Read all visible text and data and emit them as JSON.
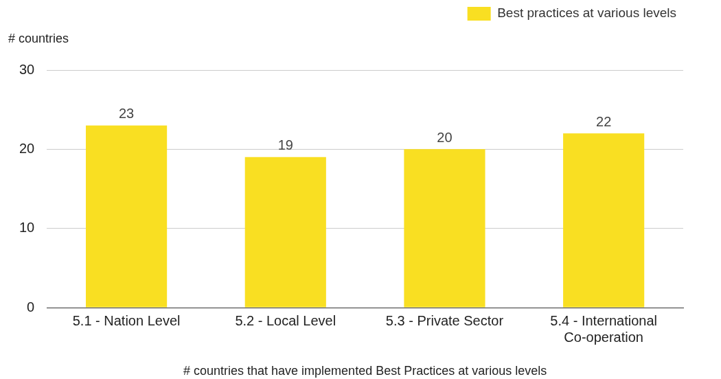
{
  "chart_data": {
    "type": "bar",
    "xlabel": "# countries that have implemented Best Practices at various levels",
    "ylabel": "# countries",
    "categories": [
      "5.1 - Nation Level",
      "5.2 - Local Level",
      "5.3 - Private Sector",
      "5.4 - International Co-operation"
    ],
    "series": [
      {
        "name": "Best practices at various levels",
        "color": "#f9df22",
        "values": [
          23,
          19,
          20,
          22
        ]
      }
    ],
    "ylim": [
      0,
      30
    ],
    "yticks": [
      0,
      10,
      20,
      30
    ],
    "grid": "y",
    "legend": "top right",
    "data_labels": true
  }
}
